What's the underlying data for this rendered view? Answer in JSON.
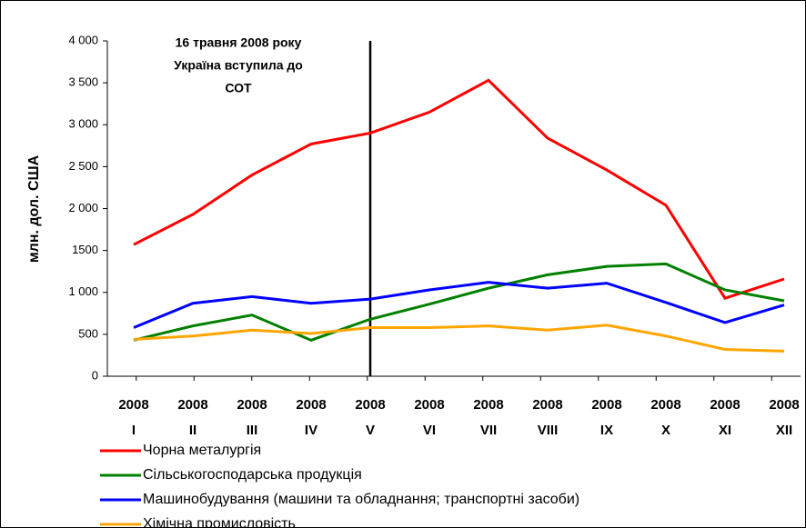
{
  "chart_data": {
    "type": "line",
    "y_label": "млн. дол. США",
    "annotation": [
      "16 травня 2008 року",
      "Україна вступила до",
      "СОТ"
    ],
    "marker_category": 4,
    "categories": [
      [
        "2008",
        "I"
      ],
      [
        "2008",
        "II"
      ],
      [
        "2008",
        "III"
      ],
      [
        "2008",
        "IV"
      ],
      [
        "2008",
        "V"
      ],
      [
        "2008",
        "VI"
      ],
      [
        "2008",
        "VII"
      ],
      [
        "2008",
        "VIII"
      ],
      [
        "2008",
        "IX"
      ],
      [
        "2008",
        "X"
      ],
      [
        "2008",
        "XI"
      ],
      [
        "2008",
        "XII"
      ]
    ],
    "series": [
      {
        "name": "Чорна металургія",
        "color": "#ff0000",
        "values": [
          1570,
          1930,
          2400,
          2770,
          2900,
          3150,
          3530,
          2840,
          2460,
          2040,
          930,
          1160
        ]
      },
      {
        "name": "Сільськогосподарська продукція",
        "color": "#008000",
        "values": [
          430,
          600,
          730,
          430,
          680,
          860,
          1050,
          1210,
          1310,
          1340,
          1030,
          900
        ]
      },
      {
        "name": "Машинобудування (машини та обладнання; транспортні засоби)",
        "color": "#0000ff",
        "values": [
          580,
          870,
          950,
          870,
          920,
          1030,
          1120,
          1050,
          1110,
          880,
          640,
          850
        ]
      },
      {
        "name": "Хімічна промисловість",
        "color": "#ffa500",
        "values": [
          440,
          480,
          550,
          510,
          580,
          580,
          600,
          550,
          610,
          480,
          320,
          300
        ]
      }
    ],
    "ylim": [
      0,
      4000
    ],
    "yticks": [
      0,
      500,
      {
        "value": 1000,
        "label": "1 000"
      },
      {
        "value": 1500,
        "label": "1500"
      },
      {
        "value": 2000,
        "label": "2 000"
      },
      {
        "value": 2500,
        "label": "2 500"
      },
      {
        "value": 3000,
        "label": "3 000"
      },
      {
        "value": 3500,
        "label": "3 500"
      },
      {
        "value": 4000,
        "label": "4 000"
      }
    ]
  }
}
